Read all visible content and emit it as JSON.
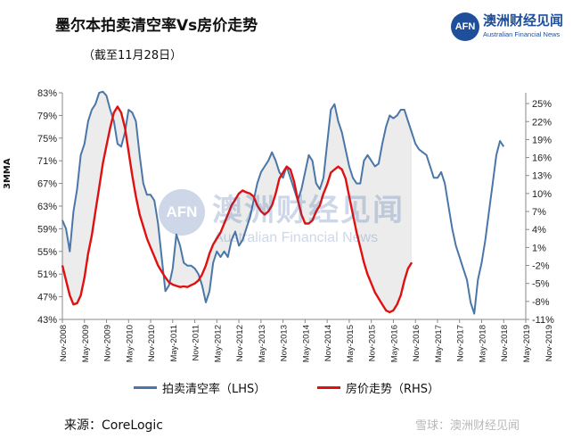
{
  "header": {
    "title": "墨尔本拍卖清空率Vs房价走势",
    "subtitle": "（截至11月28日）"
  },
  "logo": {
    "mark": "AFN",
    "name_cn": "澳洲财经见闻",
    "name_en": "Australian Financial News"
  },
  "watermark": {
    "mark": "AFN",
    "name_cn": "澳洲财经见闻",
    "name_en": "Australian Financial News"
  },
  "source": "来源：CoreLogic",
  "footer_watermark": "雪球：澳洲财经见闻",
  "colors": {
    "clearance": "#4a76a8",
    "price": "#e01010",
    "fill": "#ececec"
  },
  "chart_data": {
    "type": "line",
    "ylabel": "3MMA",
    "left_axis": {
      "ylim": [
        43,
        83
      ],
      "ticks": [
        "43%",
        "47%",
        "51%",
        "55%",
        "59%",
        "63%",
        "67%",
        "71%",
        "75%",
        "79%",
        "83%"
      ]
    },
    "right_axis": {
      "ylim": [
        -11,
        26.8
      ],
      "ticks": [
        "-11%",
        "-8%",
        "-5%",
        "-2%",
        "1%",
        "4%",
        "7%",
        "10%",
        "13%",
        "16%",
        "19%",
        "22%",
        "25%"
      ]
    },
    "x_ticks": [
      "Nov-2008",
      "May-2009",
      "Nov-2009",
      "May-2010",
      "Nov-2010",
      "May-2011",
      "Nov-2011",
      "May-2012",
      "Nov-2012",
      "May-2013",
      "Nov-2013",
      "May-2014",
      "Nov-2014",
      "May-2015",
      "Nov-2015",
      "May-2016",
      "Nov-2016",
      "May-2017",
      "Nov-2017",
      "May-2018",
      "Nov-2018",
      "May-2019",
      "Nov-2019"
    ],
    "grid": false,
    "legend_position": "bottom",
    "series": [
      {
        "name": "拍卖清空率（LHS）",
        "axis": "left",
        "color": "#4a76a8",
        "points": [
          [
            0,
            60.5
          ],
          [
            1,
            59
          ],
          [
            2,
            55
          ],
          [
            3,
            62
          ],
          [
            4,
            66
          ],
          [
            5,
            72
          ],
          [
            6,
            74
          ],
          [
            7,
            78
          ],
          [
            8,
            80
          ],
          [
            9,
            81
          ],
          [
            10,
            83
          ],
          [
            11,
            83.2
          ],
          [
            12,
            82.5
          ],
          [
            13,
            80
          ],
          [
            14,
            78
          ],
          [
            15,
            74
          ],
          [
            16,
            73.5
          ],
          [
            17,
            76
          ],
          [
            18,
            80
          ],
          [
            19,
            79.5
          ],
          [
            20,
            78
          ],
          [
            21,
            72
          ],
          [
            22,
            67
          ],
          [
            23,
            65
          ],
          [
            24,
            65
          ],
          [
            25,
            64
          ],
          [
            26,
            60
          ],
          [
            27,
            54
          ],
          [
            28,
            48
          ],
          [
            29,
            49
          ],
          [
            30,
            52
          ],
          [
            31,
            58
          ],
          [
            32,
            56
          ],
          [
            33,
            53
          ],
          [
            34,
            52.5
          ],
          [
            35,
            52.5
          ],
          [
            36,
            52
          ],
          [
            37,
            51
          ],
          [
            38,
            49
          ],
          [
            39,
            46
          ],
          [
            40,
            48
          ],
          [
            41,
            53
          ],
          [
            42,
            55
          ],
          [
            43,
            54
          ],
          [
            44,
            55
          ],
          [
            45,
            54
          ],
          [
            46,
            57
          ],
          [
            47,
            58.5
          ],
          [
            48,
            56
          ],
          [
            49,
            57
          ],
          [
            50,
            59
          ],
          [
            51,
            61
          ],
          [
            52,
            64
          ],
          [
            53,
            67
          ],
          [
            54,
            69
          ],
          [
            55,
            70
          ],
          [
            56,
            71
          ],
          [
            57,
            72.5
          ],
          [
            58,
            71
          ],
          [
            59,
            69
          ],
          [
            60,
            68
          ],
          [
            61,
            70
          ],
          [
            62,
            68
          ],
          [
            63,
            66
          ],
          [
            64,
            64
          ],
          [
            65,
            66
          ],
          [
            66,
            69
          ],
          [
            67,
            72
          ],
          [
            68,
            71
          ],
          [
            69,
            67
          ],
          [
            70,
            66
          ],
          [
            71,
            68
          ],
          [
            72,
            74
          ],
          [
            73,
            80
          ],
          [
            74,
            81
          ],
          [
            75,
            78
          ],
          [
            76,
            76
          ],
          [
            77,
            73
          ],
          [
            78,
            70
          ],
          [
            79,
            68
          ],
          [
            80,
            67
          ],
          [
            81,
            67
          ],
          [
            82,
            71
          ],
          [
            83,
            72
          ],
          [
            84,
            71
          ],
          [
            85,
            70
          ],
          [
            86,
            70.5
          ],
          [
            87,
            74
          ],
          [
            88,
            77
          ],
          [
            89,
            79
          ],
          [
            90,
            78.5
          ],
          [
            91,
            79
          ],
          [
            92,
            80
          ],
          [
            93,
            80
          ],
          [
            94,
            78
          ],
          [
            95,
            76
          ],
          [
            96,
            74
          ],
          [
            97,
            73
          ],
          [
            98,
            72.5
          ],
          [
            99,
            72
          ],
          [
            100,
            70
          ],
          [
            101,
            68
          ],
          [
            102,
            68
          ],
          [
            103,
            69
          ],
          [
            104,
            67
          ],
          [
            105,
            63
          ],
          [
            106,
            59
          ],
          [
            107,
            56
          ],
          [
            108,
            54
          ],
          [
            109,
            52
          ],
          [
            110,
            50
          ],
          [
            111,
            46
          ],
          [
            112,
            44
          ],
          [
            113,
            50
          ],
          [
            114,
            53
          ],
          [
            115,
            57
          ],
          [
            116,
            62
          ],
          [
            117,
            67
          ],
          [
            118,
            72
          ],
          [
            119,
            74.5
          ],
          [
            120,
            73.5
          ]
        ]
      },
      {
        "name": "房价走势（RHS）",
        "axis": "right",
        "color": "#e01010",
        "points": [
          [
            0,
            -2
          ],
          [
            1,
            -4.5
          ],
          [
            2,
            -7
          ],
          [
            3,
            -8.5
          ],
          [
            4,
            -8.3
          ],
          [
            5,
            -7
          ],
          [
            6,
            -4
          ],
          [
            7,
            0
          ],
          [
            8,
            3
          ],
          [
            9,
            7
          ],
          [
            10,
            11
          ],
          [
            11,
            15
          ],
          [
            12,
            18
          ],
          [
            13,
            21
          ],
          [
            14,
            23.5
          ],
          [
            15,
            24.5
          ],
          [
            16,
            23.5
          ],
          [
            17,
            21
          ],
          [
            18,
            17
          ],
          [
            19,
            13
          ],
          [
            20,
            9.5
          ],
          [
            21,
            6.5
          ],
          [
            22,
            4.5
          ],
          [
            23,
            2.5
          ],
          [
            24,
            1
          ],
          [
            25,
            -0.5
          ],
          [
            26,
            -2
          ],
          [
            27,
            -3
          ],
          [
            28,
            -4
          ],
          [
            29,
            -4.8
          ],
          [
            30,
            -5.2
          ],
          [
            31,
            -5.4
          ],
          [
            32,
            -5.6
          ],
          [
            33,
            -5.5
          ],
          [
            34,
            -5.6
          ],
          [
            35,
            -5.3
          ],
          [
            36,
            -5
          ],
          [
            37,
            -4.5
          ],
          [
            38,
            -3.5
          ],
          [
            39,
            -2
          ],
          [
            40,
            0
          ],
          [
            41,
            1.5
          ],
          [
            42,
            2.5
          ],
          [
            43,
            3.5
          ],
          [
            44,
            5
          ],
          [
            45,
            6.5
          ],
          [
            46,
            8
          ],
          [
            47,
            9
          ],
          [
            48,
            10
          ],
          [
            49,
            10.5
          ],
          [
            50,
            10.2
          ],
          [
            51,
            10
          ],
          [
            52,
            9.5
          ],
          [
            53,
            8
          ],
          [
            54,
            7
          ],
          [
            55,
            6.5
          ],
          [
            56,
            7
          ],
          [
            57,
            8
          ],
          [
            58,
            10
          ],
          [
            59,
            12.5
          ],
          [
            60,
            13.5
          ],
          [
            61,
            14.5
          ],
          [
            62,
            14
          ],
          [
            63,
            12
          ],
          [
            64,
            9
          ],
          [
            65,
            6.5
          ],
          [
            66,
            5
          ],
          [
            67,
            5
          ],
          [
            68,
            5.5
          ],
          [
            69,
            7
          ],
          [
            70,
            8
          ],
          [
            71,
            10
          ],
          [
            72,
            11.5
          ],
          [
            73,
            13.5
          ],
          [
            74,
            14
          ],
          [
            75,
            14.5
          ],
          [
            76,
            14
          ],
          [
            77,
            12.5
          ],
          [
            78,
            9.5
          ],
          [
            79,
            6.5
          ],
          [
            80,
            3.5
          ],
          [
            81,
            1
          ],
          [
            82,
            -1.5
          ],
          [
            83,
            -3.5
          ],
          [
            84,
            -5
          ],
          [
            85,
            -6.5
          ],
          [
            86,
            -7.5
          ],
          [
            87,
            -8.5
          ],
          [
            88,
            -9.5
          ],
          [
            89,
            -9.8
          ],
          [
            90,
            -9.5
          ],
          [
            91,
            -8.5
          ],
          [
            92,
            -7
          ],
          [
            93,
            -4.5
          ],
          [
            94,
            -2.5
          ],
          [
            95,
            -1.5
          ]
        ]
      }
    ]
  }
}
